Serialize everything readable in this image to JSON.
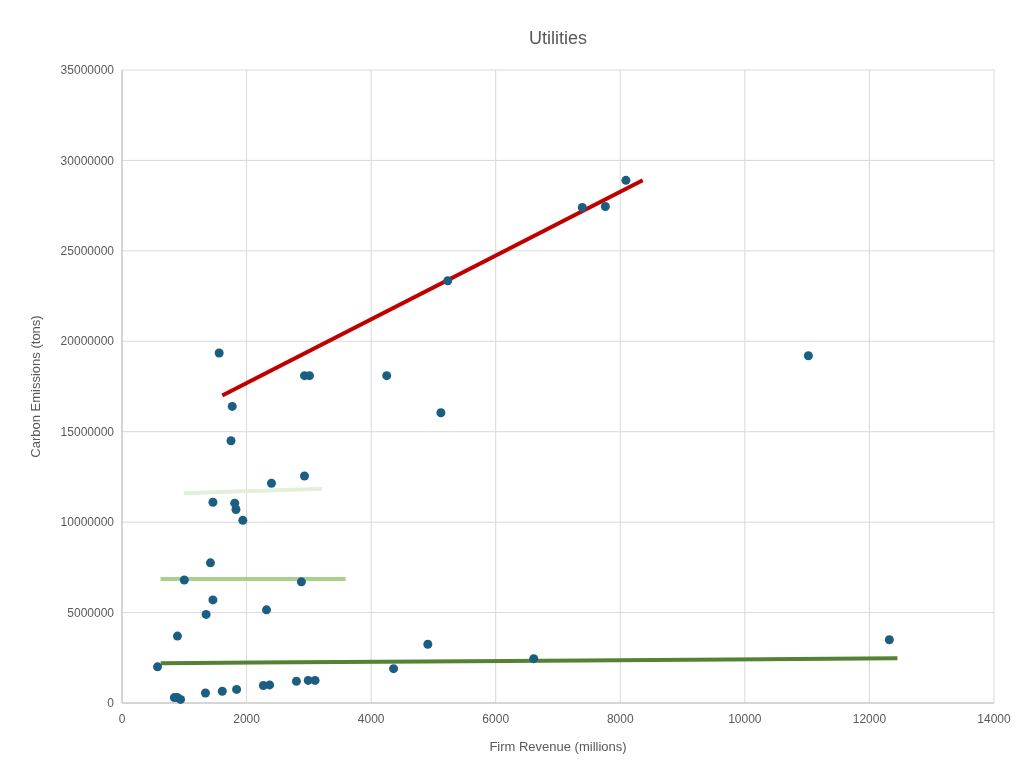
{
  "chart_data": {
    "type": "scatter",
    "title": "Utilities",
    "xlabel": "Firm Revenue (millions)",
    "ylabel": "Carbon Emissions (tons)",
    "xlim": [
      0,
      14000
    ],
    "xticks": [
      0,
      2000,
      4000,
      6000,
      8000,
      10000,
      12000,
      14000
    ],
    "ylim": [
      0,
      35000000
    ],
    "yticks": [
      0,
      5000000,
      10000000,
      15000000,
      20000000,
      25000000,
      30000000,
      35000000
    ],
    "grid": true,
    "marker": "circle",
    "series": [
      {
        "color": "#1b5e82",
        "x": [
          570,
          840,
          890,
          940,
          890,
          1000,
          1340,
          1610,
          1840,
          2270,
          2370,
          2800,
          2990,
          3100,
          1350,
          1460,
          1420,
          2320,
          2880,
          1460,
          1810,
          1830,
          1940,
          2400,
          2930,
          1750,
          1770,
          1560,
          2930,
          3010,
          4250,
          5120,
          5230,
          7390,
          7760,
          8090,
          11020,
          12320,
          4910,
          4360,
          6610
        ],
        "values": [
          2000000,
          300000,
          300000,
          200000,
          3700000,
          6800000,
          550000,
          650000,
          750000,
          970000,
          1000000,
          1200000,
          1250000,
          1250000,
          4900000,
          5700000,
          7750000,
          5150000,
          6700000,
          11100000,
          11050000,
          10700000,
          10100000,
          12150000,
          12550000,
          14500000,
          16400000,
          19350000,
          18100000,
          18100000,
          18100000,
          16050000,
          23350000,
          27400000,
          27450000,
          28900000,
          19200000,
          3500000,
          3250000,
          1900000,
          2450000
        ]
      },
      {
        "type": "line",
        "color": "#c00000",
        "marker": "none",
        "line_style": "solid",
        "x": [
          1610,
          8360
        ],
        "values": [
          17000000,
          28900000
        ]
      },
      {
        "type": "line",
        "color": "#e2efda",
        "marker": "none",
        "line_style": "solid",
        "x": [
          990,
          3210
        ],
        "values": [
          11600000,
          11850000
        ]
      },
      {
        "type": "line",
        "color": "#a9d18e",
        "marker": "none",
        "line_style": "solid",
        "x": [
          620,
          3590
        ],
        "values": [
          6850000,
          6850000
        ]
      },
      {
        "type": "line",
        "color": "#548235",
        "marker": "none",
        "line_style": "solid",
        "x": [
          620,
          12450
        ],
        "values": [
          2200000,
          2470000
        ]
      }
    ]
  }
}
